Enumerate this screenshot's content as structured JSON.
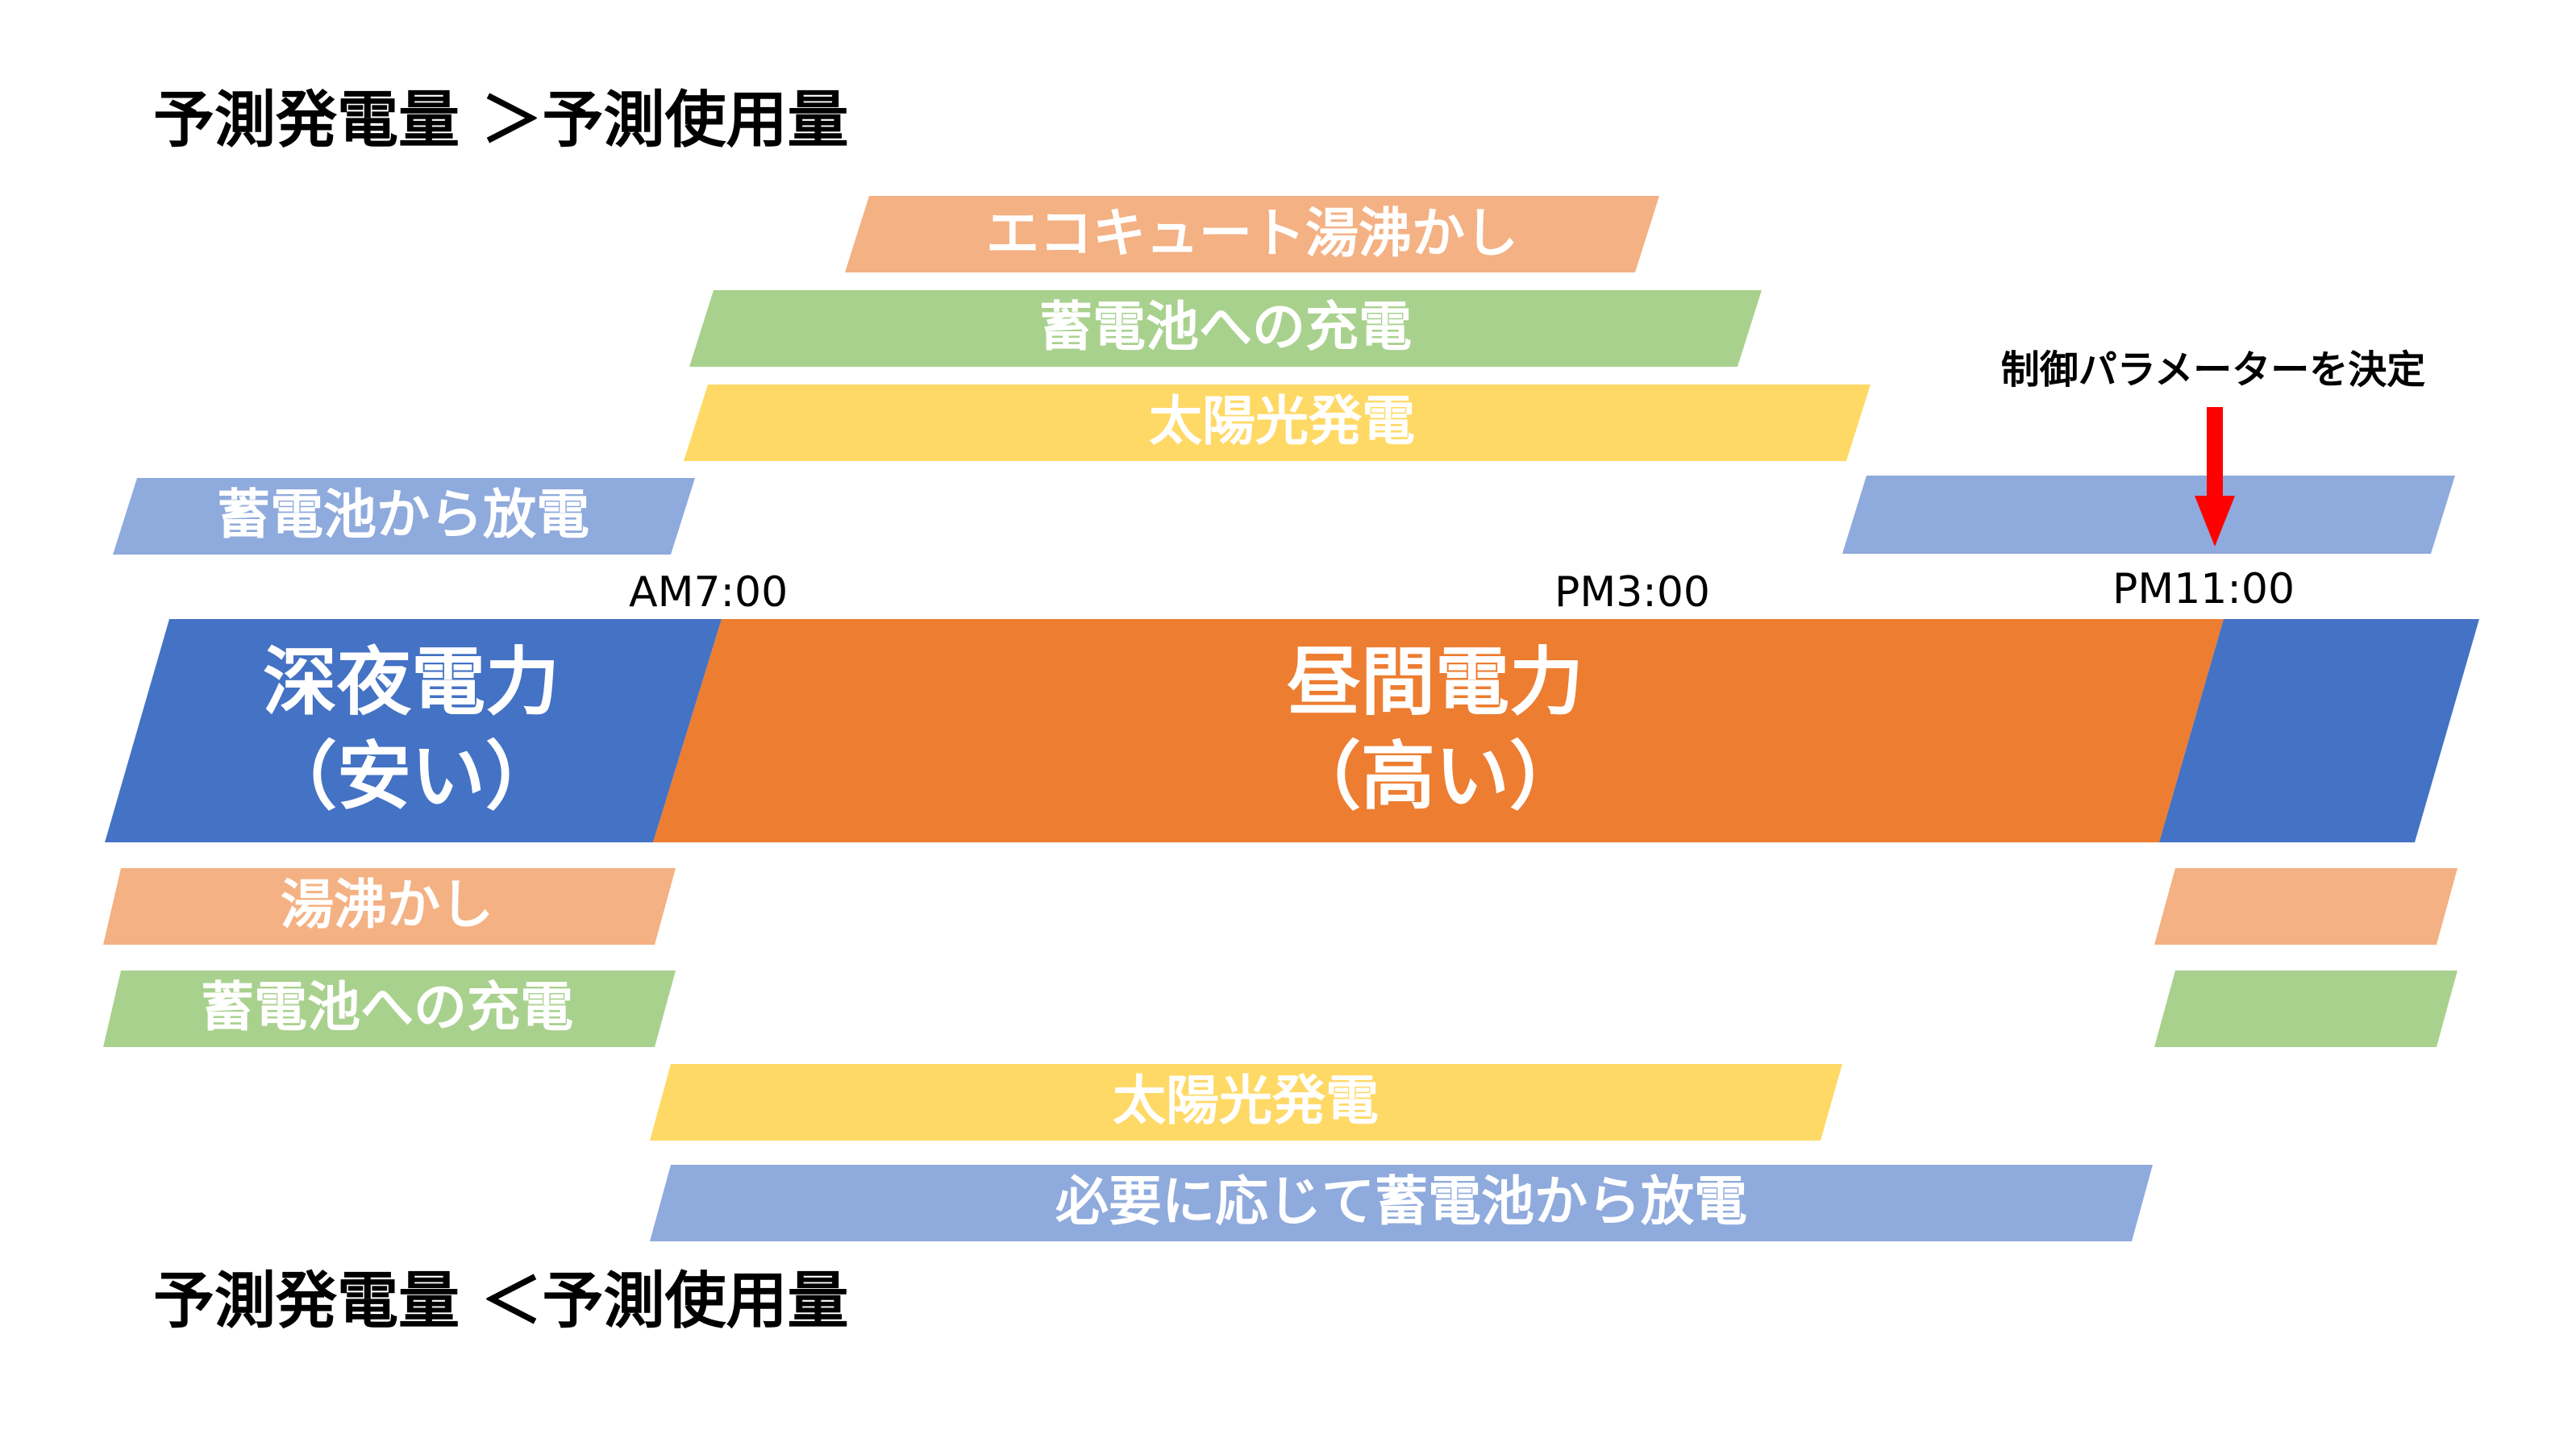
{
  "colors": {
    "orange_light": "#F4B183",
    "green": "#A9D18E",
    "yellow": "#FFD966",
    "blue_light": "#8FAADC",
    "blue_dark": "#4472C4",
    "orange_dark": "#ED7D31",
    "red": "#FF0000",
    "text_dark": "#000000",
    "text_light": "#ffffff"
  },
  "headings": {
    "top": "予測発電量 ＞予測使用量",
    "bottom": "予測発電量 ＜予測使用量"
  },
  "annotation": {
    "label": "制御パラメーターを決定"
  },
  "time_labels": {
    "am7": "AM7:00",
    "pm3": "PM3:00",
    "pm11": "PM11:00"
  },
  "tariff": {
    "night_line1": "深夜電力",
    "night_line2": "（安い）",
    "day_line1": "昼間電力",
    "day_line2": "（高い）"
  },
  "top_bars": {
    "ecocute": "エコキュート湯沸かし",
    "charge": "蓄電池への充電",
    "solar": "太陽光発電",
    "discharge": "蓄電池から放電"
  },
  "bottom_bars": {
    "boil": "湯沸かし",
    "charge": "蓄電池への充電",
    "solar": "太陽光発電",
    "discharge": "必要に応じて蓄電池から放電"
  }
}
